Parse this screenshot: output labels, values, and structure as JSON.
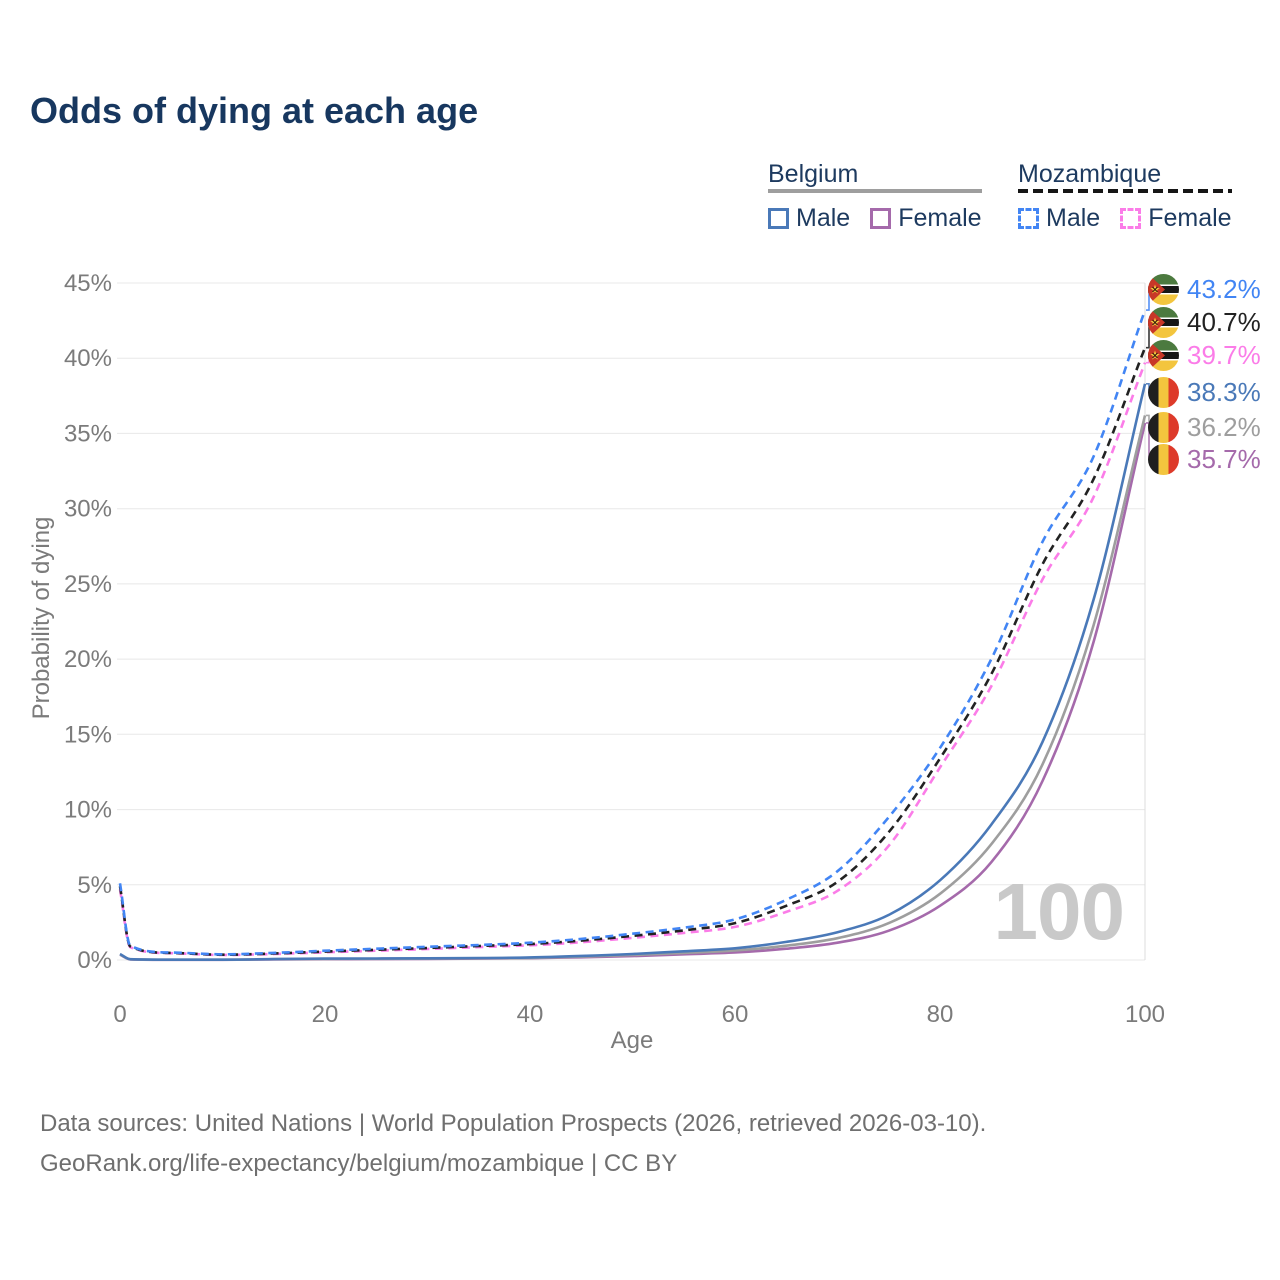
{
  "title": "Odds of dying at each age",
  "legend": {
    "groups": [
      {
        "country": "Belgium",
        "items": [
          {
            "label": "Male"
          },
          {
            "label": "Female"
          }
        ]
      },
      {
        "country": "Mozambique",
        "items": [
          {
            "label": "Male"
          },
          {
            "label": "Female"
          }
        ]
      }
    ]
  },
  "chart_data": {
    "type": "line",
    "title": "Odds of dying at each age",
    "xlabel": "Age",
    "ylabel": "Probability of dying",
    "xlim": [
      0,
      100
    ],
    "ylim_percent": [
      0,
      45
    ],
    "x_ticks": [
      0,
      20,
      40,
      60,
      80,
      100
    ],
    "y_ticks": [
      "0%",
      "5%",
      "10%",
      "15%",
      "20%",
      "25%",
      "30%",
      "35%",
      "40%",
      "45%"
    ],
    "grid": "horizontal-only",
    "legend_position": "top-right",
    "age_counter": "100",
    "ages": [
      0,
      1,
      5,
      10,
      15,
      20,
      25,
      30,
      35,
      40,
      45,
      50,
      55,
      60,
      65,
      70,
      75,
      80,
      85,
      90,
      95,
      100
    ],
    "series": [
      {
        "name": "Mozambique Male",
        "country": "Mozambique",
        "sex": "Male",
        "color": "#4285f4",
        "dashed": true,
        "end_label": "43.2%",
        "values": [
          5.1,
          0.95,
          0.5,
          0.38,
          0.47,
          0.62,
          0.75,
          0.88,
          1.0,
          1.15,
          1.4,
          1.75,
          2.15,
          2.7,
          4.0,
          5.9,
          9.5,
          14.1,
          20.0,
          27.8,
          33.5,
          43.2
        ]
      },
      {
        "name": "Mozambique Both sexes",
        "country": "Mozambique",
        "sex": "Both",
        "color": "#222222",
        "dashed": true,
        "end_label": "40.7%",
        "values": [
          4.9,
          0.9,
          0.47,
          0.35,
          0.43,
          0.56,
          0.68,
          0.8,
          0.93,
          1.06,
          1.29,
          1.6,
          1.97,
          2.45,
          3.6,
          5.2,
          8.5,
          13.4,
          19.0,
          26.3,
          32.0,
          40.7
        ]
      },
      {
        "name": "Mozambique Female",
        "country": "Mozambique",
        "sex": "Female",
        "color": "#fb7ce8",
        "dashed": true,
        "end_label": "39.7%",
        "values": [
          4.7,
          0.85,
          0.45,
          0.33,
          0.4,
          0.51,
          0.62,
          0.73,
          0.86,
          0.98,
          1.18,
          1.47,
          1.8,
          2.2,
          3.2,
          4.6,
          7.6,
          12.8,
          18.2,
          25.3,
          30.8,
          39.7
        ]
      },
      {
        "name": "Belgium Male",
        "country": "Belgium",
        "sex": "Male",
        "color": "#4a79b8",
        "dashed": false,
        "end_label": "38.3%",
        "values": [
          0.4,
          0.05,
          0.02,
          0.02,
          0.06,
          0.09,
          0.1,
          0.11,
          0.13,
          0.17,
          0.27,
          0.4,
          0.58,
          0.78,
          1.2,
          1.85,
          3.0,
          5.3,
          9.0,
          14.5,
          24.0,
          38.3
        ]
      },
      {
        "name": "Belgium Both sexes",
        "country": "Belgium",
        "sex": "Both",
        "color": "#9e9e9e",
        "dashed": false,
        "end_label": "36.2%",
        "values": [
          0.37,
          0.045,
          0.018,
          0.018,
          0.05,
          0.07,
          0.08,
          0.09,
          0.11,
          0.14,
          0.22,
          0.33,
          0.47,
          0.63,
          0.95,
          1.45,
          2.45,
          4.4,
          7.7,
          13.0,
          22.3,
          36.2
        ]
      },
      {
        "name": "Belgium Female",
        "country": "Belgium",
        "sex": "Female",
        "color": "#a56aab",
        "dashed": false,
        "end_label": "35.7%",
        "values": [
          0.35,
          0.04,
          0.015,
          0.015,
          0.04,
          0.05,
          0.06,
          0.07,
          0.09,
          0.12,
          0.18,
          0.26,
          0.38,
          0.5,
          0.75,
          1.15,
          1.95,
          3.6,
          6.5,
          11.9,
          21.2,
          35.7
        ]
      }
    ]
  },
  "footer": {
    "line1": "Data sources: United Nations | World Population Prospects (2026, retrieved 2026-03-10).",
    "line2": "GeoRank.org/life-expectancy/belgium/mozambique | CC BY"
  }
}
